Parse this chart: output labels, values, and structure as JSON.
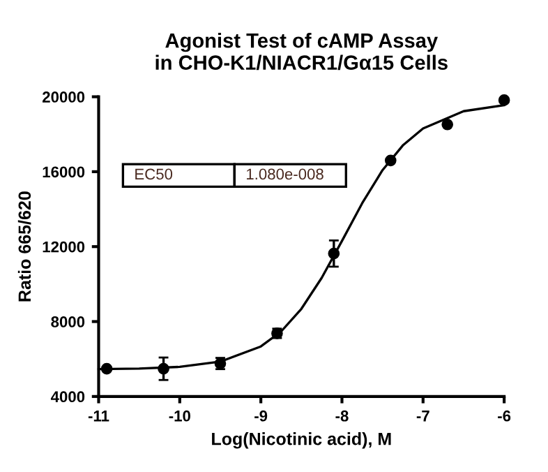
{
  "chart_data": {
    "type": "scatter",
    "title": "Agonist Test of cAMP Assay\nin CHO-K1/NIACR1/Gα15 Cells",
    "xlabel": "Log(Nicotinic acid), M",
    "ylabel": "Ratio 665/620",
    "annotations": [
      "EC50",
      "1.080e-008"
    ],
    "xlim": [
      -11,
      -6
    ],
    "xticks": [
      -11,
      -10,
      -9,
      -8,
      -7,
      -6
    ],
    "ylim": [
      4000,
      20000
    ],
    "yticks": [
      4000,
      8000,
      12000,
      16000,
      20000
    ],
    "grid": false,
    "legend": false,
    "series": [
      {
        "type": "scatter",
        "color": "#000000",
        "marker": "circle",
        "x": [
          -10.9,
          -10.2,
          -9.5,
          -8.8,
          -8.1,
          -7.4,
          -6.7,
          -6.0
        ],
        "values": [
          5480,
          5480,
          5760,
          7370,
          11630,
          16600,
          18520,
          19820
        ],
        "errors": [
          null,
          600,
          300,
          250,
          700,
          null,
          null,
          null
        ]
      },
      {
        "type": "line",
        "color": "#000000",
        "marker": "none",
        "line_style": "solid",
        "x": [
          -11,
          -10.5,
          -10,
          -9.5,
          -9,
          -8.75,
          -8.5,
          -8.25,
          -8,
          -7.75,
          -7.5,
          -7.25,
          -7,
          -6.5,
          -6
        ],
        "values": [
          5460,
          5490,
          5580,
          5860,
          6670,
          7470,
          8680,
          10330,
          12300,
          14320,
          16080,
          17400,
          18310,
          19230,
          19550
        ]
      }
    ]
  }
}
